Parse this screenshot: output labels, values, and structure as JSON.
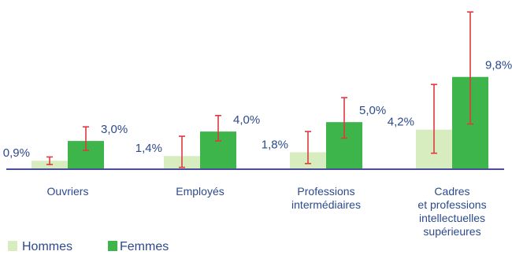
{
  "colors": {
    "hommes": "#d8edbf",
    "femmes": "#3db54a",
    "error_bar": "#e0393e",
    "axis": "#4a4c9c",
    "text": "#2c4a8c"
  },
  "chart_data": {
    "type": "bar",
    "title": "",
    "xlabel": "",
    "ylabel": "",
    "categories": [
      [
        "Ouvriers"
      ],
      [
        "Employés"
      ],
      [
        "Professions",
        "intermédiaires"
      ],
      [
        "Cadres",
        "et professions",
        "intellectuelles",
        "supérieures"
      ]
    ],
    "series": [
      {
        "name": "Hommes",
        "values": [
          0.9,
          1.4,
          1.8,
          4.2
        ],
        "labels": [
          "0,9%",
          "1,4%",
          "1,8%",
          "4,2%"
        ],
        "error_low": [
          0.5,
          0.2,
          0.6,
          1.7
        ],
        "error_high": [
          1.3,
          3.5,
          4.0,
          9.0
        ]
      },
      {
        "name": "Femmes",
        "values": [
          3.0,
          4.0,
          5.0,
          9.8
        ],
        "labels": [
          "3,0%",
          "4,0%",
          "5,0%",
          "9,8%"
        ],
        "error_low": [
          2.0,
          3.0,
          3.3,
          4.8
        ],
        "error_high": [
          4.5,
          5.7,
          7.6,
          16.7
        ]
      }
    ],
    "ylim": [
      0,
      17.3
    ],
    "grid": false,
    "legend": "bottom-left"
  }
}
